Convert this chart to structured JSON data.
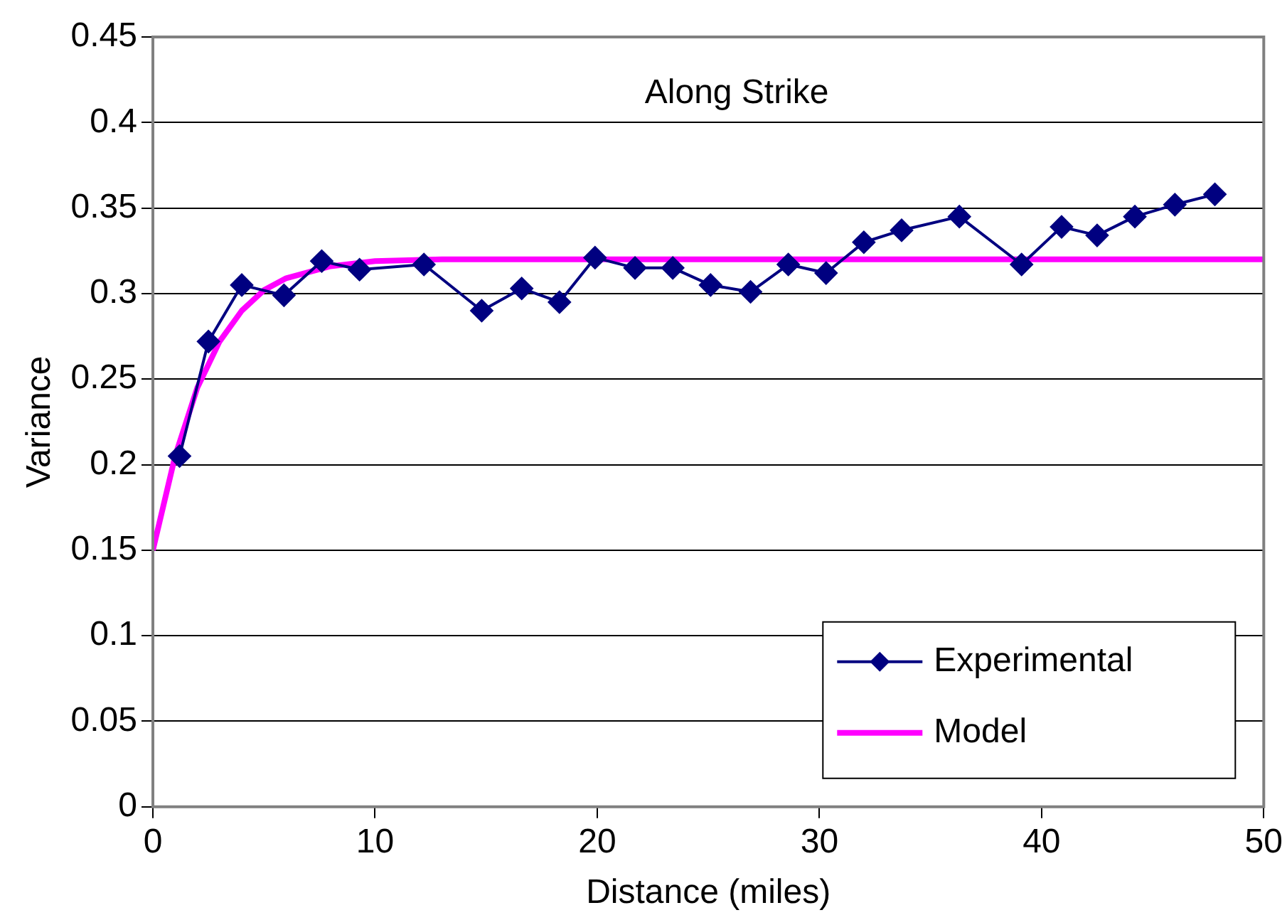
{
  "chart_data": {
    "type": "line",
    "title": "Along Strike",
    "xlabel": "Distance (miles)",
    "ylabel": "Variance",
    "xlim": [
      0,
      50
    ],
    "xticks": [
      0,
      10,
      20,
      30,
      40,
      50
    ],
    "ylim": [
      0,
      0.45
    ],
    "yticks": [
      0,
      0.05,
      0.1,
      0.15,
      0.2,
      0.25,
      0.3,
      0.35,
      0.4,
      0.45
    ],
    "grid": "y",
    "legend": "bottom right",
    "series": [
      {
        "name": "Experimental",
        "color": "#000080",
        "marker": "diamond",
        "x": [
          1.2,
          2.5,
          4.0,
          5.9,
          7.6,
          9.3,
          12.2,
          14.8,
          16.6,
          18.3,
          19.9,
          21.7,
          23.4,
          25.1,
          26.9,
          28.6,
          30.3,
          32.0,
          33.7,
          36.3,
          39.1,
          40.9,
          42.5,
          44.2,
          46.0,
          47.8
        ],
        "values": [
          0.205,
          0.272,
          0.305,
          0.299,
          0.319,
          0.314,
          0.317,
          0.29,
          0.303,
          0.295,
          0.321,
          0.315,
          0.315,
          0.305,
          0.301,
          0.317,
          0.312,
          0.33,
          0.337,
          0.345,
          0.317,
          0.339,
          0.334,
          0.345,
          0.352,
          0.358
        ]
      },
      {
        "name": "Model",
        "color": "#ff00ff",
        "marker": "none",
        "x": [
          0,
          1,
          2,
          3,
          4,
          5,
          6,
          8,
          10,
          13,
          50
        ],
        "values": [
          0.15,
          0.205,
          0.245,
          0.272,
          0.29,
          0.302,
          0.309,
          0.316,
          0.319,
          0.32,
          0.32
        ]
      }
    ]
  }
}
